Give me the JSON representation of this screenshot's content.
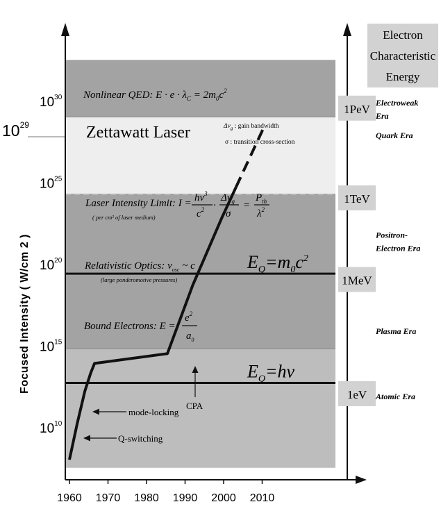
{
  "chart_data": {
    "type": "line",
    "xlabel": "",
    "ylabel": "Focused Intensity ( W/cm 2 )",
    "xlim": [
      1960,
      2014
    ],
    "ylim_log10": [
      7.5,
      32.5
    ],
    "x_ticks": [
      "1960",
      "1970",
      "1980",
      "1990",
      "2000",
      "2010"
    ],
    "y_ticks": [
      {
        "exp": 10,
        "label_base": "10",
        "label_exp": "10"
      },
      {
        "exp": 15,
        "label_base": "10",
        "label_exp": "15"
      },
      {
        "exp": 20,
        "label_base": "10",
        "label_exp": "20"
      },
      {
        "exp": 25,
        "label_base": "10",
        "label_exp": "25"
      },
      {
        "exp": 30,
        "label_base": "10",
        "label_exp": "30"
      }
    ],
    "extra_y_label": {
      "exp": 29,
      "base": "10",
      "sup": "29"
    },
    "series": [
      {
        "points": [
          [
            1960,
            8.0
          ],
          [
            1962,
            10.2
          ],
          [
            1964,
            12.2
          ],
          [
            1965.5,
            13.3
          ],
          [
            1966.5,
            13.9
          ],
          [
            1985.4,
            14.5
          ],
          [
            1992,
            18.7
          ],
          [
            1999.5,
            22.8
          ],
          [
            2003.2,
            24.7
          ]
        ],
        "style": "solid"
      },
      {
        "points": [
          [
            2003.2,
            24.7
          ],
          [
            2010.5,
            28.4
          ]
        ],
        "style": "dashed"
      }
    ],
    "bands": [
      {
        "from": 29,
        "to": 32.5,
        "fill": "#a3a3a3"
      },
      {
        "from": 24.3,
        "to": 29,
        "fill": "#eeeeee"
      },
      {
        "from": 14.8,
        "to": 24.3,
        "fill": "#a3a3a3"
      },
      {
        "from": 7.5,
        "to": 14.8,
        "fill": "#bdbdbd"
      }
    ],
    "energy_lines": [
      {
        "y": 19.4,
        "label_main": "E",
        "label_sub": "Q",
        "label_eq": "=m",
        "label_sub2": "0",
        "label_tail": "c",
        "label_sup": "2"
      },
      {
        "y": 12.7,
        "label_main": "E",
        "label_sub": "Q",
        "label_eq": "=hν"
      }
    ],
    "region_texts": {
      "qed": "Nonlinear QED:  E · e · λ",
      "qed_sub": "C",
      "qed_rhs": " = 2m",
      "qed_rhs_sub": "0",
      "qed_rhs_tail": "c",
      "qed_rhs_sup": "2",
      "zettawatt": "Zettawatt Laser",
      "gain_sym": "Δν",
      "gain_sub": "g",
      "gain_desc": " : gain bandwidth",
      "sigma_desc": "σ   : transition cross-section",
      "limit_label": "Laser Intensity Limit:  I =",
      "limit_note": "( per cm² of laser medium)",
      "limit_n1": "hν",
      "limit_n1_sup": "3",
      "limit_d1": "c",
      "limit_d1_sup": "2",
      "limit_n2": "Δν",
      "limit_n2_sub": "g",
      "limit_d2": "σ",
      "limit_n3": "P",
      "limit_n3_sub": "th",
      "limit_d3": "λ",
      "limit_d3_sup": "2",
      "rel_optics": "Relativistic Optics:  v",
      "rel_optics_sub": "osc",
      "rel_optics_tail": " ~ c",
      "rel_note": "(large ponderomotive pressures)",
      "bound": "Bound Electrons:  E =",
      "bound_num": "e",
      "bound_num_sup": "2",
      "bound_den": "a",
      "bound_den_sub": "0"
    },
    "annotations": [
      {
        "text": "mode-locking"
      },
      {
        "text": "Q-switching"
      },
      {
        "text": "CPA"
      }
    ],
    "right_axis": {
      "title_lines": [
        "Electron",
        "Characteristic",
        "Energy"
      ],
      "energy_labels": [
        "1PeV",
        "1TeV",
        "1MeV",
        "1eV"
      ],
      "eras": [
        {
          "lines": [
            "Electroweak",
            "Era"
          ]
        },
        {
          "lines": [
            "Quark Era"
          ]
        },
        {
          "lines": [
            "Positron-",
            "Electron Era"
          ]
        },
        {
          "lines": [
            "Plasma Era"
          ]
        },
        {
          "lines": [
            "Atomic Era"
          ]
        }
      ]
    },
    "colors": {
      "dark_band": "#a3a3a3",
      "light_band": "#eeeeee",
      "lower_band": "#bdbdbd",
      "label_box": "#d2d2d2",
      "line": "#111111",
      "dash": "#e0e0e0"
    }
  }
}
